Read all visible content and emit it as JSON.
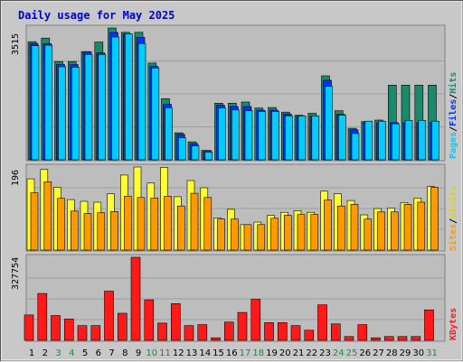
{
  "title": "Daily usage for May 2025",
  "colors": {
    "hits": "#1a8a6a",
    "files": "#0033ff",
    "pages": "#00ccff",
    "visits": "#ffff33",
    "sites": "#ff9900",
    "kbytes": "#ff1a1a",
    "title": "#0000cc",
    "weekend_day": "#1a8a4a"
  },
  "labels": {
    "pages": "Pages",
    "files": "Files",
    "hits": "Hits",
    "sites": "Sites",
    "visits": "Visits",
    "kbytes": "KBytes",
    "sep": "/"
  },
  "chart_data": [
    {
      "type": "bar",
      "name": "hits-files-pages",
      "ymax_label": "3515",
      "ylim": [
        0,
        3515
      ],
      "categories": [
        "1",
        "2",
        "3",
        "4",
        "5",
        "6",
        "7",
        "8",
        "9",
        "10",
        "11",
        "12",
        "13",
        "14",
        "15",
        "16",
        "17",
        "18",
        "19",
        "20",
        "21",
        "22",
        "23",
        "24",
        "25",
        "26",
        "27",
        "28",
        "29",
        "30",
        "31"
      ],
      "weekend": [
        3,
        4,
        10,
        11,
        17,
        18,
        24,
        25,
        31
      ],
      "series": [
        {
          "name": "Hits",
          "values": [
            3150,
            3245,
            2620,
            2620,
            2885,
            3140,
            3515,
            3400,
            3400,
            2580,
            1630,
            720,
            480,
            250,
            1510,
            1510,
            1540,
            1380,
            1395,
            1270,
            1190,
            1240,
            2240,
            1310,
            840,
            1020,
            1060,
            1990,
            1990,
            1990,
            1990
          ]
        },
        {
          "name": "Files",
          "values": [
            3100,
            3095,
            2540,
            2540,
            2885,
            2850,
            3395,
            3355,
            3265,
            2490,
            1480,
            680,
            430,
            245,
            1455,
            1420,
            1420,
            1325,
            1325,
            1220,
            1160,
            1160,
            2120,
            1210,
            800,
            990,
            990,
            990,
            990,
            990,
            990
          ]
        },
        {
          "name": "Pages",
          "values": [
            3040,
            3055,
            2480,
            2470,
            2810,
            2810,
            3275,
            3355,
            3100,
            2450,
            1390,
            590,
            370,
            205,
            1380,
            1330,
            1310,
            1290,
            1290,
            1170,
            1170,
            1170,
            1960,
            1190,
            700,
            1030,
            1030,
            960,
            1050,
            1050,
            1030
          ]
        }
      ]
    },
    {
      "type": "bar",
      "name": "visits-sites",
      "ymax_label": "196",
      "ylim": [
        0,
        196
      ],
      "categories": [
        "1",
        "2",
        "3",
        "4",
        "5",
        "6",
        "7",
        "8",
        "9",
        "10",
        "11",
        "12",
        "13",
        "14",
        "15",
        "16",
        "17",
        "18",
        "19",
        "20",
        "21",
        "22",
        "23",
        "24",
        "25",
        "26",
        "27",
        "28",
        "29",
        "30",
        "31"
      ],
      "series": [
        {
          "name": "Visits",
          "values": [
            168,
            190,
            148,
            119,
            115,
            113,
            133,
            177,
            196,
            158,
            195,
            126,
            164,
            147,
            76,
            96,
            60,
            66,
            82,
            89,
            93,
            89,
            139,
            133,
            117,
            83,
            98,
            99,
            112,
            123,
            150
          ]
        },
        {
          "name": "Sites",
          "values": [
            135,
            161,
            122,
            92,
            86,
            88,
            91,
            127,
            124,
            123,
            127,
            104,
            134,
            124,
            73,
            73,
            60,
            60,
            75,
            82,
            84,
            84,
            118,
            104,
            108,
            73,
            90,
            90,
            108,
            113,
            148
          ]
        }
      ]
    },
    {
      "type": "bar",
      "name": "kbytes",
      "ymax_label": "327754",
      "ylim": [
        0,
        327754
      ],
      "categories": [
        "1",
        "2",
        "3",
        "4",
        "5",
        "6",
        "7",
        "8",
        "9",
        "10",
        "11",
        "12",
        "13",
        "14",
        "15",
        "16",
        "17",
        "18",
        "19",
        "20",
        "21",
        "22",
        "23",
        "24",
        "25",
        "26",
        "27",
        "28",
        "29",
        "30",
        "31"
      ],
      "series": [
        {
          "name": "KBytes",
          "values": [
            100000,
            185000,
            98000,
            84000,
            58000,
            58000,
            194000,
            107000,
            327754,
            160000,
            68000,
            145000,
            58000,
            62000,
            10000,
            72000,
            110000,
            162000,
            70000,
            70000,
            58000,
            40000,
            140000,
            65000,
            15000,
            62000,
            10000,
            15000,
            15000,
            15000,
            120000
          ]
        }
      ]
    }
  ]
}
